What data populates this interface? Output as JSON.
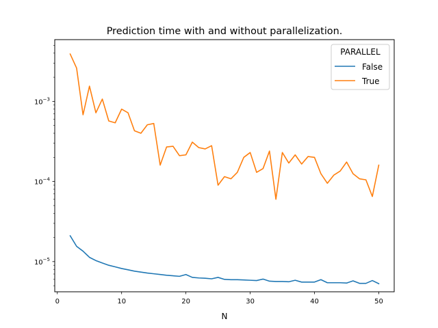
{
  "chart_data": {
    "type": "line",
    "title": "Prediction time with and without parallelization.",
    "xlabel": "N",
    "ylabel": "",
    "y_scale": "log",
    "xlim": [
      -0.4,
      52.4
    ],
    "ylim": [
      4.2e-06,
      0.0059
    ],
    "x_ticks": [
      0,
      10,
      20,
      30,
      40,
      50
    ],
    "x_tick_labels": [
      "0",
      "10",
      "20",
      "30",
      "40",
      "50"
    ],
    "y_ticks": [
      1e-05,
      0.0001,
      0.001
    ],
    "y_tick_labels": [
      {
        "base": "10",
        "exp": "−5"
      },
      {
        "base": "10",
        "exp": "−4"
      },
      {
        "base": "10",
        "exp": "−3"
      }
    ],
    "grid": false,
    "legend": {
      "title": "PARALLEL",
      "position": "top-right"
    },
    "x": [
      2,
      3,
      4,
      5,
      6,
      7,
      8,
      9,
      10,
      11,
      12,
      13,
      14,
      15,
      16,
      17,
      18,
      19,
      20,
      21,
      22,
      23,
      24,
      25,
      26,
      27,
      28,
      29,
      30,
      31,
      32,
      33,
      34,
      35,
      36,
      37,
      38,
      39,
      40,
      41,
      42,
      43,
      44,
      45,
      46,
      47,
      48,
      49,
      50
    ],
    "series": [
      {
        "name": "False",
        "color": "#1f77b4",
        "values": [
          2.1e-05,
          1.55e-05,
          1.35e-05,
          1.13e-05,
          1.03e-05,
          9.6e-06,
          9e-06,
          8.6e-06,
          8.2e-06,
          7.9e-06,
          7.6e-06,
          7.4e-06,
          7.2e-06,
          7.05e-06,
          6.9e-06,
          6.75e-06,
          6.65e-06,
          6.55e-06,
          6.9e-06,
          6.35e-06,
          6.25e-06,
          6.2e-06,
          6.1e-06,
          6.35e-06,
          6e-06,
          5.95e-06,
          5.95e-06,
          5.9e-06,
          5.85e-06,
          5.8e-06,
          6.05e-06,
          5.7e-06,
          5.65e-06,
          5.65e-06,
          5.6e-06,
          5.85e-06,
          5.55e-06,
          5.55e-06,
          5.55e-06,
          5.95e-06,
          5.45e-06,
          5.45e-06,
          5.45e-06,
          5.4e-06,
          5.75e-06,
          5.35e-06,
          5.35e-06,
          5.8e-06,
          5.3e-06
        ]
      },
      {
        "name": "True",
        "color": "#ff7f0e",
        "values": [
          0.0039,
          0.0026,
          0.00068,
          0.00155,
          0.00072,
          0.00107,
          0.00057,
          0.00054,
          0.0008,
          0.00072,
          0.00043,
          0.0004,
          0.00051,
          0.00053,
          0.00016,
          0.00027,
          0.000275,
          0.00021,
          0.000215,
          0.00031,
          0.000265,
          0.000255,
          0.00028,
          9e-05,
          0.000115,
          0.000108,
          0.00013,
          0.0002,
          0.00023,
          0.00013,
          0.000145,
          0.00024,
          6e-05,
          0.00023,
          0.00017,
          0.000215,
          0.000165,
          0.000205,
          0.0002,
          0.000125,
          9.5e-05,
          0.00012,
          0.000135,
          0.000175,
          0.000125,
          0.000108,
          0.000105,
          6.5e-05,
          0.00016
        ]
      }
    ]
  }
}
